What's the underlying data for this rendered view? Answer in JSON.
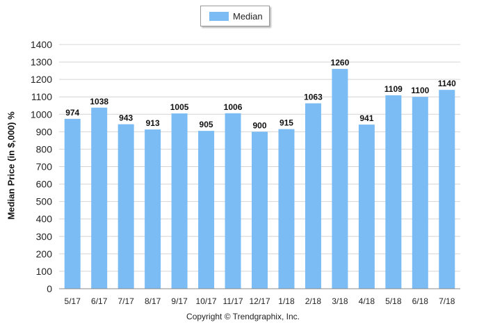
{
  "chart_data": {
    "type": "bar",
    "categories": [
      "5/17",
      "6/17",
      "7/17",
      "8/17",
      "9/17",
      "10/17",
      "11/17",
      "12/17",
      "1/18",
      "2/18",
      "3/18",
      "4/18",
      "5/18",
      "6/18",
      "7/18"
    ],
    "series": [
      {
        "name": "Median",
        "values": [
          974,
          1038,
          943,
          913,
          1005,
          905,
          1006,
          900,
          915,
          1063,
          1260,
          941,
          1109,
          1100,
          1140
        ],
        "color": "#7cbcf4"
      }
    ],
    "ylabel": "Median Price (in $,000) %",
    "xlabel": "",
    "ylim": [
      0,
      1400
    ],
    "yticks": [
      0,
      100,
      200,
      300,
      400,
      500,
      600,
      700,
      800,
      900,
      1000,
      1100,
      1200,
      1300,
      1400
    ],
    "grid": true,
    "legend": "top-center",
    "data_labels": true
  },
  "legend": {
    "label": "Median"
  },
  "footer": {
    "copyright": "Copyright © Trendgraphix, Inc."
  }
}
